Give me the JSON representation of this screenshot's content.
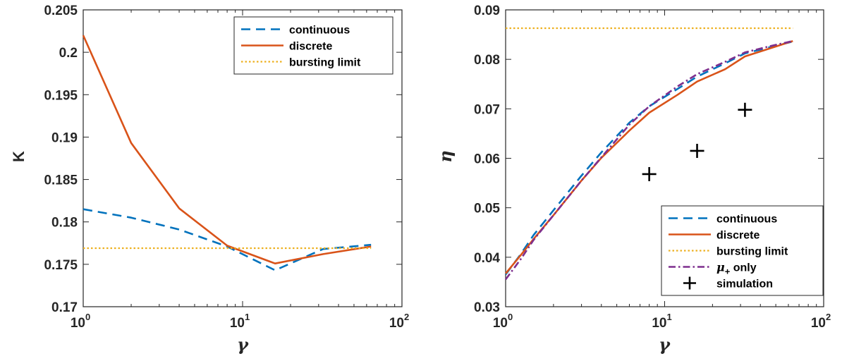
{
  "chart_data": [
    {
      "type": "line",
      "x_scale": "log",
      "xlabel": "γ",
      "ylabel": "K",
      "xlim": [
        1,
        100
      ],
      "ylim": [
        0.17,
        0.205
      ],
      "x_ticks": [
        1,
        10,
        100
      ],
      "x_tick_labels": [
        {
          "base": "10",
          "exp": "0"
        },
        {
          "base": "10",
          "exp": "1"
        },
        {
          "base": "10",
          "exp": "2"
        }
      ],
      "y_ticks": [
        0.17,
        0.175,
        0.18,
        0.185,
        0.19,
        0.195,
        0.2,
        0.205
      ],
      "y_tick_labels": [
        "0.17",
        "0.175",
        "0.18",
        "0.185",
        "0.19",
        "0.195",
        "0.2",
        "0.205"
      ],
      "grid": false,
      "legend_position": "top-right",
      "series": [
        {
          "name": "continuous",
          "style": "dashed",
          "color": "#0072BD",
          "x": [
            1,
            2,
            4,
            8,
            16,
            32,
            64
          ],
          "y": [
            0.1815,
            0.1805,
            0.1791,
            0.1771,
            0.1743,
            0.1768,
            0.1773
          ]
        },
        {
          "name": "discrete",
          "style": "solid",
          "color": "#D95319",
          "x": [
            1,
            2,
            4,
            8,
            16,
            32,
            64
          ],
          "y": [
            0.202,
            0.1893,
            0.1816,
            0.1772,
            0.1751,
            0.1762,
            0.1771
          ]
        },
        {
          "name": "bursting limit",
          "style": "dotted",
          "color": "#EDB120",
          "x": [
            1,
            64
          ],
          "y": [
            0.1769,
            0.1769
          ]
        }
      ]
    },
    {
      "type": "line",
      "x_scale": "log",
      "xlabel": "γ",
      "ylabel": "η",
      "xlim": [
        1,
        100
      ],
      "ylim": [
        0.03,
        0.09
      ],
      "x_ticks": [
        1,
        10,
        100
      ],
      "x_tick_labels": [
        {
          "base": "10",
          "exp": "0"
        },
        {
          "base": "10",
          "exp": "1"
        },
        {
          "base": "10",
          "exp": "2"
        }
      ],
      "y_ticks": [
        0.03,
        0.04,
        0.05,
        0.06,
        0.07,
        0.08,
        0.09
      ],
      "y_tick_labels": [
        "0.03",
        "0.04",
        "0.05",
        "0.06",
        "0.07",
        "0.08",
        "0.09"
      ],
      "grid": false,
      "legend_position": "bottom-right",
      "series": [
        {
          "name": "continuous",
          "style": "dashed",
          "color": "#0072BD",
          "x": [
            1,
            1.25,
            1.5,
            2,
            3,
            4,
            6,
            8,
            12,
            16,
            24,
            32,
            48,
            64
          ],
          "y": [
            0.0365,
            0.0407,
            0.0445,
            0.0495,
            0.0565,
            0.0612,
            0.0672,
            0.0705,
            0.074,
            0.0765,
            0.0792,
            0.0812,
            0.0826,
            0.0836
          ]
        },
        {
          "name": "discrete",
          "style": "solid",
          "color": "#D95319",
          "x": [
            1,
            1.25,
            1.5,
            2,
            3,
            4,
            6,
            8,
            12,
            16,
            24,
            32,
            48,
            64
          ],
          "y": [
            0.0367,
            0.0405,
            0.0437,
            0.0485,
            0.0555,
            0.0601,
            0.0656,
            0.0692,
            0.0728,
            0.0755,
            0.078,
            0.0806,
            0.0824,
            0.0837
          ]
        },
        {
          "name": "bursting limit",
          "style": "dotted",
          "color": "#EDB120",
          "x": [
            1,
            64
          ],
          "y": [
            0.0863,
            0.0863
          ]
        },
        {
          "name": "μ₊ only",
          "legend_main": "μ",
          "legend_sub": "+",
          "legend_rest": " only",
          "style": "dashdot",
          "color": "#7E2F8E",
          "x": [
            1,
            1.25,
            1.5,
            2,
            3,
            4,
            6,
            8,
            12,
            16,
            24,
            32,
            48,
            64
          ],
          "y": [
            0.0355,
            0.0397,
            0.0435,
            0.0485,
            0.0555,
            0.0602,
            0.0668,
            0.0705,
            0.0745,
            0.077,
            0.0795,
            0.0814,
            0.0828,
            0.0837
          ]
        },
        {
          "name": "simulation",
          "style": "markers",
          "marker": "plus",
          "color": "#000000",
          "x": [
            8,
            16,
            32
          ],
          "y": [
            0.0568,
            0.0615,
            0.0698
          ]
        }
      ]
    }
  ],
  "colors": {
    "axis": "#262626",
    "continuous": "#0072BD",
    "discrete": "#D95319",
    "bursting_limit": "#EDB120",
    "mu_plus_only": "#7E2F8E",
    "simulation": "#000000"
  }
}
